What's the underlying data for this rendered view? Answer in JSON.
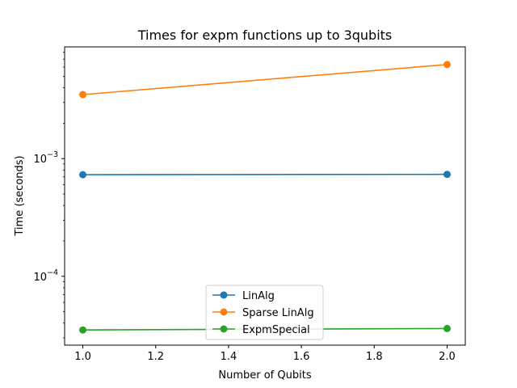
{
  "chart_data": {
    "type": "line",
    "title": "Times for expm functions up to 3qubits",
    "xlabel": "Number of Qubits",
    "ylabel": "Time (seconds)",
    "yscale": "log",
    "xlim": [
      0.95,
      2.05
    ],
    "ylim": [
      2.6e-05,
      0.0089
    ],
    "x_ticks": [
      1.0,
      1.2,
      1.4,
      1.6,
      1.8,
      2.0
    ],
    "x_tick_labels": [
      "1.0",
      "1.2",
      "1.4",
      "1.6",
      "1.8",
      "2.0"
    ],
    "y_major_ticks": [
      0.0001,
      0.001
    ],
    "y_major_tick_labels": [
      {
        "base": "10",
        "exp": "−4"
      },
      {
        "base": "10",
        "exp": "−3"
      }
    ],
    "grid": false,
    "legend_position": "bottom-center",
    "x": [
      1.0,
      2.0
    ],
    "series": [
      {
        "name": "LinAlg",
        "color": "#1f77b4",
        "marker": "circle",
        "values": [
          0.00073,
          0.000735
        ]
      },
      {
        "name": "Sparse LinAlg",
        "color": "#ff7f0e",
        "marker": "circle",
        "values": [
          0.0035,
          0.0063
        ]
      },
      {
        "name": "ExpmSpecial",
        "color": "#2ca02c",
        "marker": "circle",
        "values": [
          3.5e-05,
          3.6e-05
        ]
      }
    ]
  }
}
